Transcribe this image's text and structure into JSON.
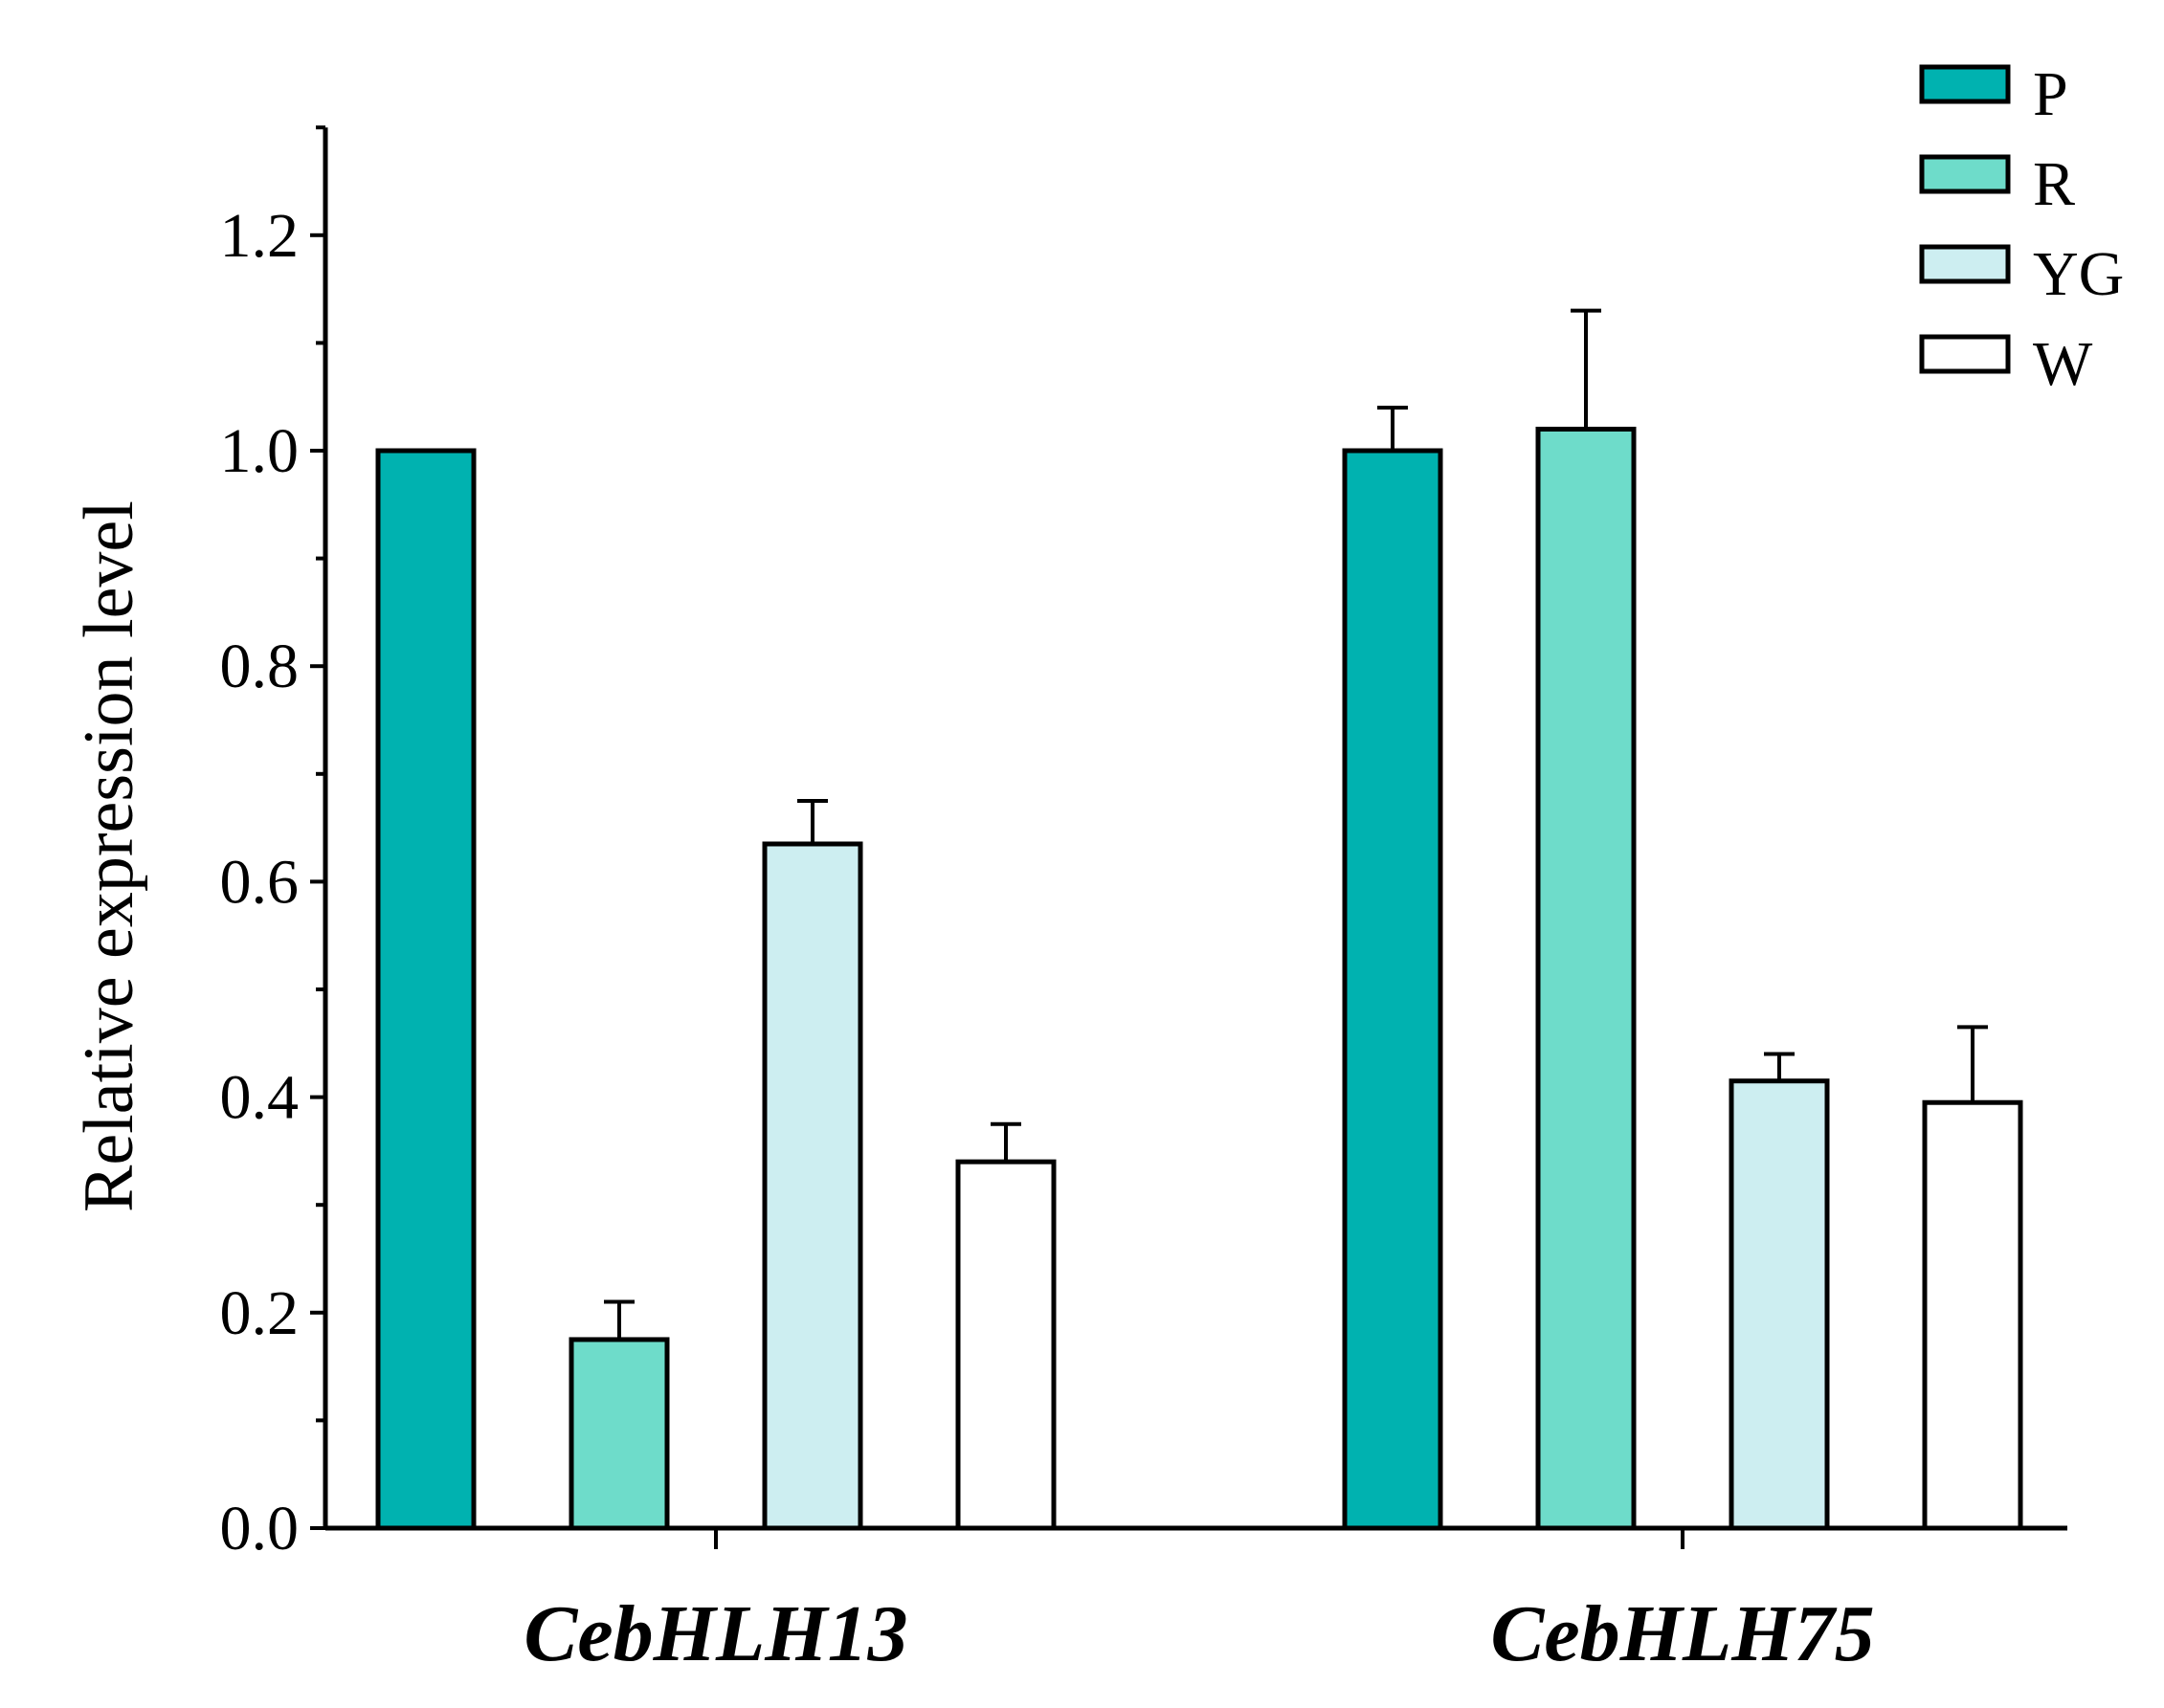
{
  "chart_data": {
    "type": "bar",
    "title": "",
    "xlabel": "",
    "ylabel": "Relative expression level",
    "ylim": [
      0,
      1.3
    ],
    "yticks": [
      0.0,
      0.2,
      0.4,
      0.6,
      0.8,
      1.0,
      1.2
    ],
    "ytick_labels": [
      "0.0",
      "0.2",
      "0.4",
      "0.6",
      "0.8",
      "1.0",
      "1.2"
    ],
    "categories": [
      "CebHLH13",
      "CebHLH75"
    ],
    "series": [
      {
        "name": "P",
        "color": "#00b2b0",
        "values": [
          1.0,
          1.0
        ],
        "errors": [
          0.0,
          0.04
        ]
      },
      {
        "name": "R",
        "color": "#6edcca",
        "values": [
          0.175,
          1.02
        ],
        "errors": [
          0.035,
          0.11
        ]
      },
      {
        "name": "YG",
        "color": "#cdeef1",
        "values": [
          0.635,
          0.415
        ],
        "errors": [
          0.04,
          0.025
        ]
      },
      {
        "name": "W",
        "color": "#ffffff",
        "values": [
          0.34,
          0.395
        ],
        "errors": [
          0.035,
          0.07
        ]
      }
    ],
    "legend_position": "top-right",
    "grid": false
  }
}
